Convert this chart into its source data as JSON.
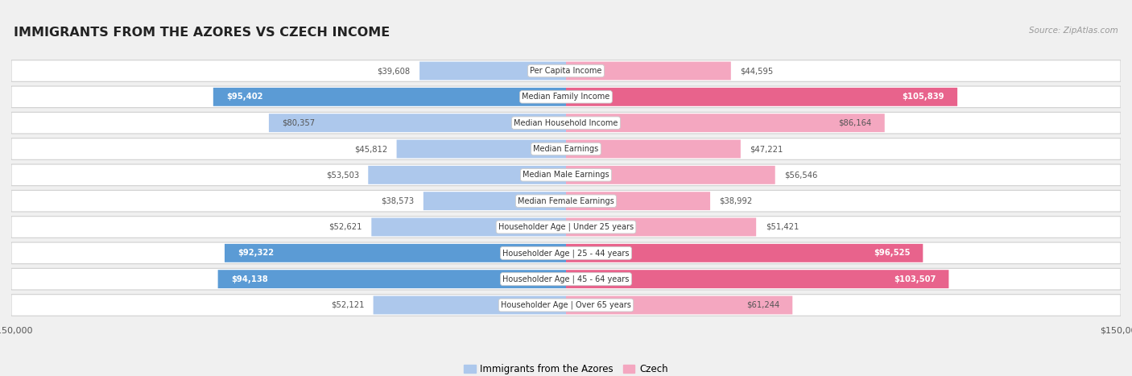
{
  "title": "IMMIGRANTS FROM THE AZORES VS CZECH INCOME",
  "source": "Source: ZipAtlas.com",
  "categories": [
    "Per Capita Income",
    "Median Family Income",
    "Median Household Income",
    "Median Earnings",
    "Median Male Earnings",
    "Median Female Earnings",
    "Householder Age | Under 25 years",
    "Householder Age | 25 - 44 years",
    "Householder Age | 45 - 64 years",
    "Householder Age | Over 65 years"
  ],
  "azores_values": [
    39608,
    95402,
    80357,
    45812,
    53503,
    38573,
    52621,
    92322,
    94138,
    52121
  ],
  "czech_values": [
    44595,
    105839,
    86164,
    47221,
    56546,
    38992,
    51421,
    96525,
    103507,
    61244
  ],
  "azores_labels": [
    "$39,608",
    "$95,402",
    "$80,357",
    "$45,812",
    "$53,503",
    "$38,573",
    "$52,621",
    "$92,322",
    "$94,138",
    "$52,121"
  ],
  "czech_labels": [
    "$44,595",
    "$105,839",
    "$86,164",
    "$47,221",
    "$56,546",
    "$38,992",
    "$51,421",
    "$96,525",
    "$103,507",
    "$61,244"
  ],
  "azores_color_light": "#adc8ec",
  "azores_color_dark": "#5b9bd5",
  "czech_color_light": "#f4a7c0",
  "czech_color_dark": "#e8638c",
  "azores_dark_rows": [
    1,
    7,
    8
  ],
  "czech_dark_rows": [
    1,
    7,
    8
  ],
  "max_value": 150000,
  "background_color": "#f0f0f0",
  "row_bg_color": "#ffffff",
  "legend_azores": "Immigrants from the Azores",
  "legend_czech": "Czech",
  "inside_label_threshold": 60000
}
